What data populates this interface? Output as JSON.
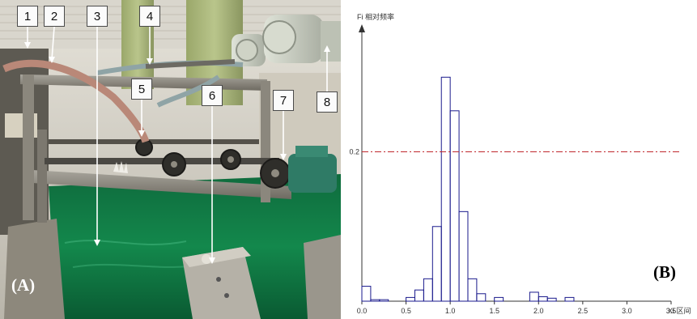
{
  "panel_a": {
    "label": "(A)",
    "callouts": [
      {
        "id": "1",
        "text": "1"
      },
      {
        "id": "2",
        "text": "2"
      },
      {
        "id": "3",
        "text": "3"
      },
      {
        "id": "4",
        "text": "4"
      },
      {
        "id": "5",
        "text": "5"
      },
      {
        "id": "6",
        "text": "6"
      },
      {
        "id": "7",
        "text": "7"
      },
      {
        "id": "8",
        "text": "8"
      }
    ]
  },
  "panel_b": {
    "label": "(B)",
    "y_axis_label": "Fi 相对频率",
    "x_axis_label": "Xi 区间",
    "ref_line_label": "0.2",
    "colors": {
      "bars": "#1a1a8c",
      "ref_line": "#c0282d",
      "axis": "#333333"
    }
  },
  "chart_data": {
    "type": "bar",
    "title": "",
    "xlabel": "Xi 区间",
    "ylabel": "Fi 相对频率",
    "xlim": [
      0,
      3.5
    ],
    "ylim": [
      0,
      0.36
    ],
    "x_ticks": [
      "0.0",
      "0.5",
      "1.0",
      "1.5",
      "2.0",
      "2.5",
      "3.0",
      "3.5"
    ],
    "y_ticks": [
      "0.2"
    ],
    "reference_line": {
      "y": 0.2,
      "style": "dash-dot",
      "color": "#c0282d"
    },
    "bin_width": 0.1,
    "bins": [
      {
        "x0": 0.0,
        "value": 0.02
      },
      {
        "x0": 0.1,
        "value": 0.002
      },
      {
        "x0": 0.2,
        "value": 0.002
      },
      {
        "x0": 0.3,
        "value": 0.0
      },
      {
        "x0": 0.4,
        "value": 0.0
      },
      {
        "x0": 0.5,
        "value": 0.005
      },
      {
        "x0": 0.6,
        "value": 0.015
      },
      {
        "x0": 0.7,
        "value": 0.03
      },
      {
        "x0": 0.8,
        "value": 0.1
      },
      {
        "x0": 0.9,
        "value": 0.3
      },
      {
        "x0": 1.0,
        "value": 0.255
      },
      {
        "x0": 1.1,
        "value": 0.12
      },
      {
        "x0": 1.2,
        "value": 0.03
      },
      {
        "x0": 1.3,
        "value": 0.01
      },
      {
        "x0": 1.4,
        "value": 0.0
      },
      {
        "x0": 1.5,
        "value": 0.005
      },
      {
        "x0": 1.6,
        "value": 0.0
      },
      {
        "x0": 1.7,
        "value": 0.0
      },
      {
        "x0": 1.8,
        "value": 0.0
      },
      {
        "x0": 1.9,
        "value": 0.012
      },
      {
        "x0": 2.0,
        "value": 0.006
      },
      {
        "x0": 2.1,
        "value": 0.004
      },
      {
        "x0": 2.2,
        "value": 0.0
      },
      {
        "x0": 2.3,
        "value": 0.005
      }
    ]
  }
}
